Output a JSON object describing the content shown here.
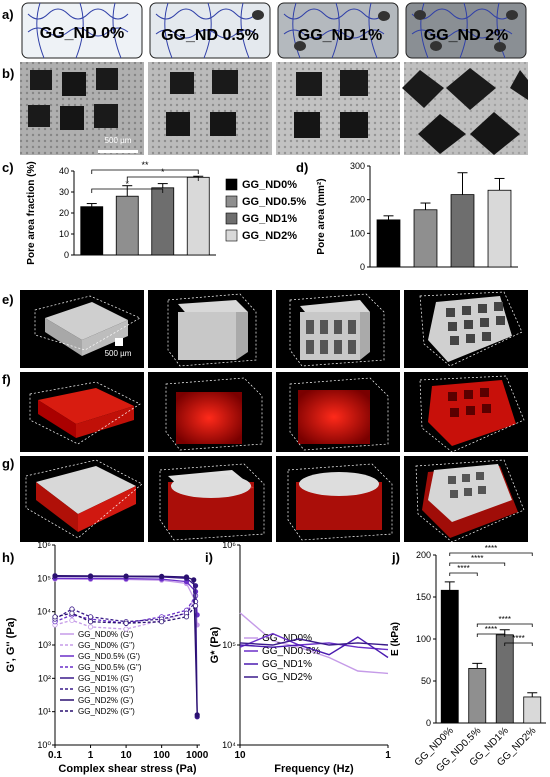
{
  "panel_letters": {
    "a": "a)",
    "b": "b)",
    "c": "c)",
    "d": "d)",
    "e": "e)",
    "f": "f)",
    "g": "g)",
    "h": "h)",
    "i": "i)",
    "j": "j)"
  },
  "scaffold_labels": [
    "GG_ND 0%",
    "GG_ND 0.5%",
    "GG_ND 1%",
    "GG_ND 2%"
  ],
  "scale_bars": {
    "sem": "500 µm",
    "microct": "500 µm"
  },
  "significance": "*",
  "colors": {
    "nd0": "#000000",
    "nd05": "#8f8f8f",
    "nd1": "#6e6e6e",
    "nd2": "#d9d9d9",
    "purple_dark": "#3a1a8a",
    "purple_mid": "#6a2fc9",
    "purple_light": "#c59be8",
    "red": "#c8100a"
  },
  "chart_data": [
    {
      "panel": "c",
      "type": "bar",
      "categories": [
        "GG_ND0%",
        "GG_ND0.5%",
        "GG_ND1%",
        "GG_ND2%"
      ],
      "values": [
        23,
        28,
        32,
        37
      ],
      "errors": [
        1.5,
        5,
        2,
        0.5
      ],
      "ylabel": "Pore area fraction (%)",
      "ylim": [
        0,
        40
      ],
      "yticks": [
        "0",
        "10",
        "20",
        "30",
        "40"
      ],
      "legend": [
        "GG_ND0%",
        "GG_ND0.5%",
        "GG_ND1%",
        "GG_ND2%"
      ],
      "significance": [
        {
          "from": "GG_ND0%",
          "to": "GG_ND2%",
          "label": "**"
        },
        {
          "from": "GG_ND0.5%",
          "to": "GG_ND2%",
          "label": "*"
        },
        {
          "from": "GG_ND0%",
          "to": "GG_ND1%",
          "label": "*"
        }
      ]
    },
    {
      "panel": "d",
      "type": "bar",
      "categories": [
        "GG_ND0%",
        "GG_ND0.5%",
        "GG_ND1%",
        "GG_ND2%"
      ],
      "values": [
        140,
        170,
        215,
        228
      ],
      "errors": [
        12,
        20,
        65,
        35
      ],
      "ylabel": "Pore area (mm²)",
      "ylim": [
        0,
        300
      ],
      "yticks": [
        "0",
        "100",
        "200",
        "300"
      ]
    },
    {
      "panel": "h",
      "type": "line",
      "scale": "log-log",
      "xlabel": "Complex shear stress (Pa)",
      "ylabel": "G', G'' (Pa)",
      "xticks": [
        "0.1",
        "1",
        "10",
        "100",
        "1000"
      ],
      "yticks": [
        "10⁰",
        "10¹",
        "10²",
        "10³",
        "10⁴",
        "10⁵",
        "10⁶"
      ],
      "xlim": [
        0.1,
        1200
      ],
      "ylim": [
        1,
        1000000
      ],
      "series": [
        {
          "name": "GG_ND0% (G')",
          "x": [
            0.1,
            1,
            10,
            100,
            500,
            900,
            1000
          ],
          "y": [
            95000,
            93000,
            92000,
            88000,
            70000,
            20000,
            4000
          ]
        },
        {
          "name": "GG_ND0% (G'')",
          "x": [
            0.1,
            0.3,
            1,
            10,
            100,
            500,
            900
          ],
          "y": [
            4000,
            5500,
            3500,
            3000,
            5500,
            9000,
            30000
          ]
        },
        {
          "name": "GG_ND0.5% (G')",
          "x": [
            0.1,
            1,
            10,
            100,
            500,
            900,
            1000
          ],
          "y": [
            100000,
            99000,
            98000,
            95000,
            80000,
            40000,
            8000
          ]
        },
        {
          "name": "GG_ND0.5% (G'')",
          "x": [
            0.1,
            0.3,
            1,
            10,
            100,
            500,
            900
          ],
          "y": [
            5000,
            8000,
            6000,
            4500,
            7000,
            11000,
            30000
          ]
        },
        {
          "name": "GG_ND1% (G')",
          "x": [
            0.1,
            1,
            10,
            100,
            500,
            900,
            1000
          ],
          "y": [
            115000,
            113000,
            112000,
            110000,
            100000,
            60000,
            7
          ]
        },
        {
          "name": "GG_ND1% (G'')",
          "x": [
            0.1,
            0.3,
            1,
            10,
            100,
            500,
            900
          ],
          "y": [
            6000,
            12000,
            7000,
            5000,
            6000,
            9000,
            20000
          ]
        },
        {
          "name": "GG_ND2% (G')",
          "x": [
            0.1,
            1,
            10,
            100,
            500,
            800,
            1000
          ],
          "y": [
            120000,
            118000,
            117000,
            115000,
            110000,
            90000,
            8
          ]
        },
        {
          "name": "GG_ND2% (G'')",
          "x": [
            0.1,
            0.3,
            1,
            10,
            100,
            500,
            900
          ],
          "y": [
            7000,
            9000,
            5000,
            4500,
            5000,
            7000,
            15000
          ]
        }
      ]
    },
    {
      "panel": "i",
      "type": "line",
      "scale": "log-log",
      "xlabel": "Frequency (Hz)",
      "ylabel": "G* (Pa)",
      "xticks": [
        "10",
        "1"
      ],
      "yticks": [
        "10⁴",
        "10⁵",
        "10⁶"
      ],
      "xlim": [
        10,
        1
      ],
      "ylim": [
        10000,
        1000000
      ],
      "series": [
        {
          "name": "GG_ND0%",
          "x": [
            10,
            6,
            4,
            2.5,
            1.6,
            1
          ],
          "y": [
            210000,
            110000,
            95000,
            75000,
            55000,
            52000
          ]
        },
        {
          "name": "GG_ND0.5%",
          "x": [
            10,
            6,
            4,
            2.5,
            1.6,
            1
          ],
          "y": [
            95000,
            130000,
            100000,
            105000,
            95000,
            90000
          ]
        },
        {
          "name": "GG_ND1%",
          "x": [
            10,
            6,
            4,
            2.5,
            1.6,
            1
          ],
          "y": [
            100000,
            95000,
            100000,
            80000,
            120000,
            75000
          ]
        },
        {
          "name": "GG_ND2%",
          "x": [
            10,
            6,
            4,
            2.5,
            1.6,
            1
          ],
          "y": [
            105000,
            100000,
            115000,
            100000,
            105000,
            100000
          ]
        }
      ]
    },
    {
      "panel": "j",
      "type": "bar",
      "categories": [
        "GG_ND0%",
        "GG_ND0.5%",
        "GG_ND1%",
        "GG_ND2%"
      ],
      "values": [
        158,
        65,
        105,
        31
      ],
      "errors": [
        10,
        6,
        6,
        5
      ],
      "ylabel": "E (kPa)",
      "ylim": [
        0,
        200
      ],
      "yticks": [
        "0",
        "50",
        "100",
        "150",
        "200"
      ],
      "significance_label": "****"
    }
  ]
}
